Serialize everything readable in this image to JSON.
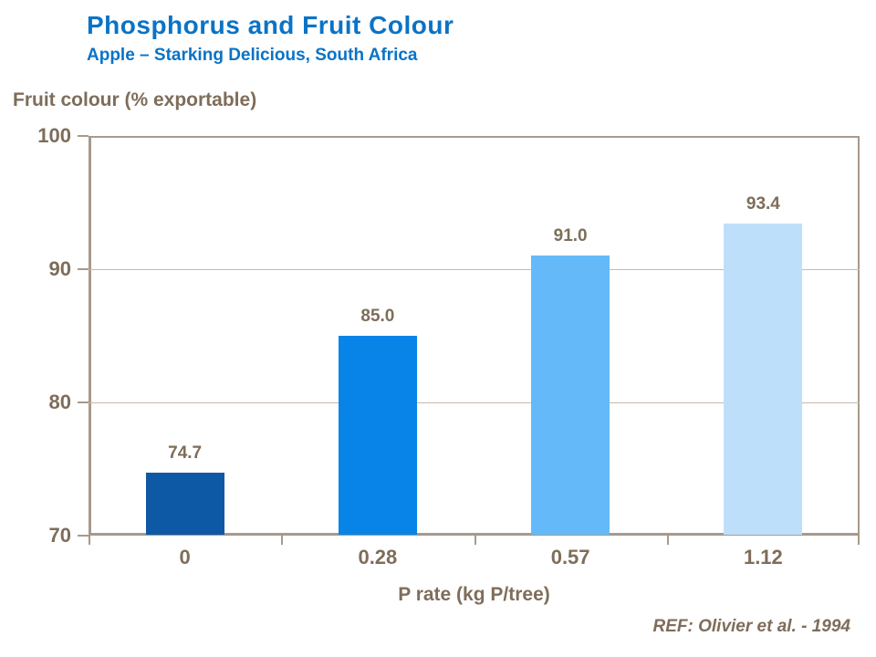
{
  "header": {
    "title": "Phosphorus and Fruit Colour",
    "subtitle": "Apple – Starking Delicious, South Africa"
  },
  "footer": {
    "reference": "REF: Olivier et al. - 1994"
  },
  "colors": {
    "title_blue": "#0a73c6",
    "text_brown": "#7e6d5a",
    "axis_line": "#a69a8b",
    "gridline": "#c4baae",
    "bar_colors": [
      "#0e59a5",
      "#0884e8",
      "#64baf8",
      "#bddffa"
    ]
  },
  "chart_data": {
    "type": "bar",
    "title": "Phosphorus and Fruit Colour",
    "subtitle": "Apple – Starking Delicious, South Africa",
    "ylabel": "Fruit colour (% exportable)",
    "xlabel": "P rate (kg P/tree)",
    "categories": [
      "0",
      "0.28",
      "0.57",
      "1.12"
    ],
    "values": [
      74.7,
      85.0,
      91.0,
      93.4
    ],
    "value_labels": [
      "74.7",
      "85.0",
      "91.0",
      "93.4"
    ],
    "ylim": [
      70,
      100
    ],
    "yticks": [
      70,
      80,
      90,
      100
    ],
    "ytick_labels": [
      "70",
      "80",
      "90",
      "100"
    ],
    "grid": "horizontal",
    "legend": "none"
  }
}
